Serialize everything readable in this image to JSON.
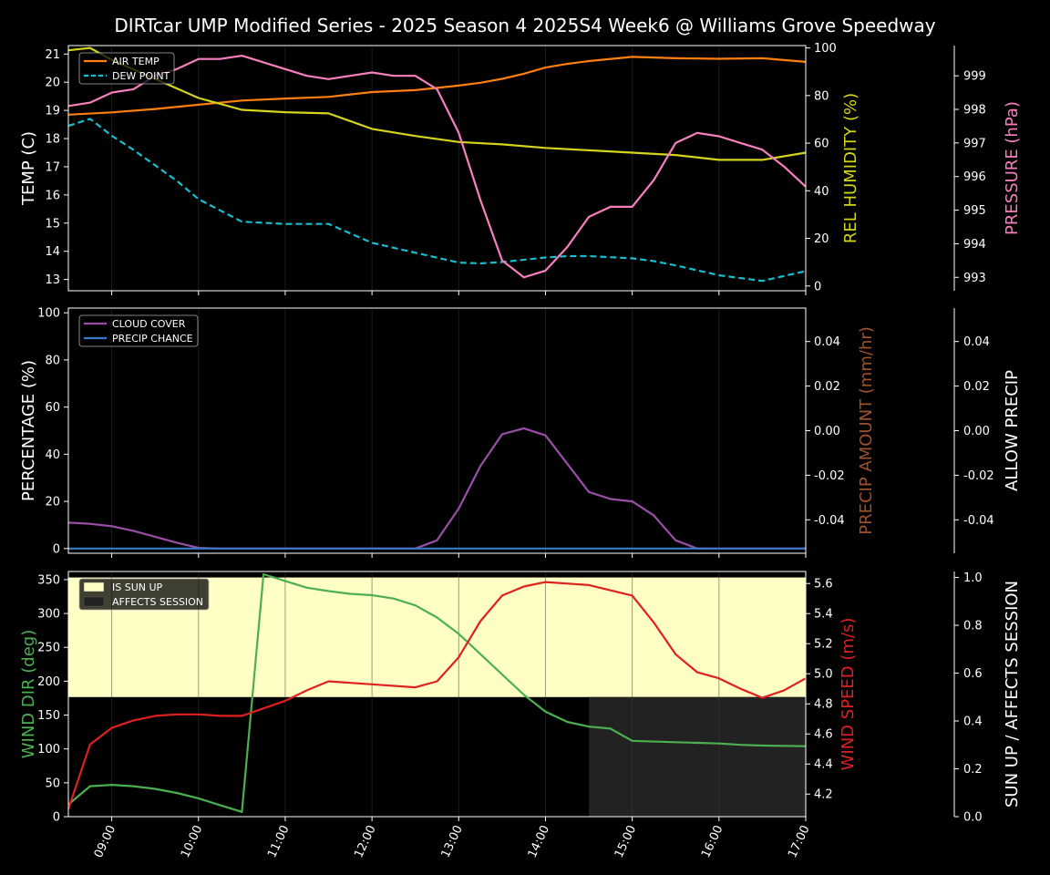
{
  "title": "DIRTcar UMP Modified Series - 2025 Season 4 2025S4 Week6 @ Williams Grove Speedway",
  "colors": {
    "background": "#000000",
    "air_temp": "#ff7f0e",
    "dew_point": "#17becf",
    "humidity": "#d4d41a",
    "pressure": "#f77fbe",
    "cloud_cover": "#9a4ea8",
    "precip_chance": "#3c78c8",
    "precip_amount": "#a0522d",
    "wind_dir": "#4caf50",
    "wind_speed": "#e02020",
    "sun_up": "#ffffc5",
    "affects_session": "#222222"
  },
  "chart_data": [
    {
      "type": "line",
      "panel": "conditions",
      "x_ticks": [
        "09:00",
        "10:00",
        "11:00",
        "12:00",
        "13:00",
        "14:00",
        "15:00",
        "16:00",
        "17:00"
      ],
      "xlim": [
        "08:30",
        "17:00"
      ],
      "ylabel": "TEMP (C)",
      "ylim": [
        12.6,
        21.3
      ],
      "yticks": [
        13,
        14,
        15,
        16,
        17,
        18,
        19,
        20,
        21
      ],
      "y2label": "REL HUMIDITY (%)",
      "y2lim": [
        -2,
        101
      ],
      "y2ticks": [
        0,
        20,
        40,
        60,
        80,
        100
      ],
      "y3label": "PRESSURE (hPa)",
      "y3lim": [
        992.6,
        999.9
      ],
      "y3ticks": [
        993,
        994,
        995,
        996,
        997,
        998,
        999
      ],
      "legend": [
        {
          "label": "AIR TEMP",
          "style": "solid"
        },
        {
          "label": "DEW POINT",
          "style": "dashed"
        }
      ],
      "legend_position": "upper-left",
      "series": [
        {
          "name": "AIR TEMP",
          "axis": "y",
          "x": [
            "08:30",
            "09:00",
            "09:30",
            "10:00",
            "10:30",
            "11:00",
            "11:30",
            "12:00",
            "12:30",
            "13:00",
            "13:15",
            "13:30",
            "13:45",
            "14:00",
            "14:15",
            "14:30",
            "15:00",
            "15:30",
            "16:00",
            "16:30",
            "17:00"
          ],
          "values": [
            18.85,
            18.93,
            19.05,
            19.2,
            19.35,
            19.42,
            19.48,
            19.65,
            19.72,
            19.88,
            19.98,
            20.12,
            20.3,
            20.52,
            20.65,
            20.75,
            20.9,
            20.85,
            20.83,
            20.85,
            20.72
          ]
        },
        {
          "name": "DEW POINT",
          "axis": "y",
          "x": [
            "08:30",
            "08:45",
            "09:00",
            "09:15",
            "09:30",
            "09:45",
            "10:00",
            "10:30",
            "11:00",
            "11:30",
            "12:00",
            "12:30",
            "13:00",
            "13:15",
            "13:30",
            "14:00",
            "14:15",
            "14:30",
            "15:00",
            "15:15",
            "15:30",
            "16:00",
            "16:30",
            "17:00"
          ],
          "values": [
            18.45,
            18.7,
            18.1,
            17.6,
            17.05,
            16.5,
            15.85,
            15.05,
            14.97,
            14.97,
            14.3,
            13.95,
            13.6,
            13.57,
            13.62,
            13.78,
            13.83,
            13.83,
            13.75,
            13.65,
            13.5,
            13.15,
            12.95,
            13.3
          ]
        },
        {
          "name": "REL HUMIDITY",
          "axis": "y2",
          "x": [
            "08:30",
            "08:45",
            "09:00",
            "09:15",
            "09:30",
            "09:45",
            "10:00",
            "10:30",
            "11:00",
            "11:30",
            "12:00",
            "12:30",
            "13:00",
            "13:30",
            "14:00",
            "14:30",
            "15:00",
            "15:30",
            "16:00",
            "16:30",
            "17:00"
          ],
          "values": [
            99,
            100,
            95,
            91,
            87,
            83,
            79,
            74,
            73,
            72.5,
            66,
            63,
            60.5,
            59.5,
            58,
            57,
            56,
            55,
            53,
            53,
            56
          ]
        },
        {
          "name": "PRESSURE",
          "axis": "y3",
          "x": [
            "08:30",
            "08:45",
            "09:00",
            "09:15",
            "09:30",
            "09:45",
            "10:00",
            "10:15",
            "10:30",
            "10:45",
            "11:00",
            "11:15",
            "11:30",
            "11:45",
            "12:00",
            "12:15",
            "12:30",
            "12:45",
            "13:00",
            "13:15",
            "13:30",
            "13:45",
            "14:00",
            "14:15",
            "14:30",
            "14:45",
            "15:00",
            "15:15",
            "15:30",
            "15:45",
            "16:00",
            "16:15",
            "16:30",
            "16:45",
            "17:00"
          ],
          "values": [
            998.1,
            998.2,
            998.5,
            998.6,
            999.0,
            999.2,
            999.5,
            999.5,
            999.6,
            999.4,
            999.2,
            999.0,
            998.9,
            999.0,
            999.1,
            999.0,
            999.0,
            998.6,
            997.3,
            995.3,
            993.5,
            993.0,
            993.2,
            993.9,
            994.8,
            995.1,
            995.1,
            995.9,
            997.0,
            997.3,
            997.2,
            997.0,
            996.8,
            996.3,
            995.7
          ]
        }
      ]
    },
    {
      "type": "line",
      "panel": "clouds",
      "ylabel": "PERCENTAGE (%)",
      "ylim": [
        -2,
        102
      ],
      "yticks": [
        0,
        20,
        40,
        60,
        80,
        100
      ],
      "y2label": "PRECIP AMOUNT (mm/hr)",
      "y2lim": [
        -0.055,
        0.055
      ],
      "y2ticks": [
        -0.04,
        -0.02,
        0.0,
        0.02,
        0.04
      ],
      "y3label": "ALLOW PRECIP",
      "y3lim": [
        -0.055,
        0.055
      ],
      "y3ticks": [
        -0.04,
        -0.02,
        0.0,
        0.02,
        0.04
      ],
      "legend": [
        {
          "label": "CLOUD COVER",
          "style": "solid"
        },
        {
          "label": "PRECIP CHANCE",
          "style": "solid"
        }
      ],
      "legend_position": "upper-left",
      "series": [
        {
          "name": "CLOUD COVER",
          "axis": "y",
          "x": [
            "08:30",
            "08:45",
            "09:00",
            "09:15",
            "09:30",
            "09:45",
            "10:00",
            "10:15",
            "12:30",
            "12:45",
            "13:00",
            "13:15",
            "13:30",
            "13:45",
            "14:00",
            "14:15",
            "14:30",
            "14:45",
            "15:00",
            "15:15",
            "15:30",
            "15:45",
            "16:00",
            "17:00"
          ],
          "values": [
            11,
            10.5,
            9.5,
            7.5,
            5,
            2.5,
            0.3,
            0,
            0,
            3.5,
            17,
            35,
            48.5,
            51,
            48,
            36,
            24,
            21,
            20,
            14,
            3.5,
            0,
            0,
            0
          ]
        },
        {
          "name": "PRECIP CHANCE",
          "axis": "y",
          "x": [
            "08:30",
            "17:00"
          ],
          "values": [
            0,
            0
          ]
        }
      ]
    },
    {
      "type": "line",
      "panel": "wind",
      "ylabel": "WIND DIR (deg)",
      "ylim": [
        0,
        362
      ],
      "yticks": [
        0,
        50,
        100,
        150,
        200,
        250,
        300,
        350
      ],
      "y2label": "WIND SPEED (m/s)",
      "y2lim": [
        4.05,
        5.68
      ],
      "y2ticks": [
        4.2,
        4.4,
        4.6,
        4.8,
        5.0,
        5.2,
        5.4,
        5.6
      ],
      "y3label": "SUN UP / AFFECTS SESSION",
      "y3lim": [
        0,
        1.025
      ],
      "y3ticks": [
        0.0,
        0.2,
        0.4,
        0.6,
        0.8,
        1.0
      ],
      "legend": [
        {
          "label": "IS SUN UP",
          "style": "patch"
        },
        {
          "label": "AFFECTS SESSION",
          "style": "patch"
        }
      ],
      "legend_position": "upper-left",
      "bands": [
        {
          "name": "IS SUN UP",
          "x": [
            "08:30",
            "17:00"
          ],
          "y3": [
            0.5,
            1.0
          ]
        },
        {
          "name": "AFFECTS SESSION",
          "x": [
            "14:30",
            "17:00"
          ],
          "y3": [
            0.0,
            0.5
          ]
        }
      ],
      "series": [
        {
          "name": "WIND DIR",
          "axis": "y",
          "x": [
            "08:30",
            "08:45",
            "09:00",
            "09:15",
            "09:30",
            "09:45",
            "10:00",
            "10:15",
            "10:30",
            "10:45",
            "11:00",
            "11:15",
            "11:30",
            "11:45",
            "12:00",
            "12:15",
            "12:30",
            "12:45",
            "13:00",
            "13:15",
            "13:30",
            "13:45",
            "14:00",
            "14:15",
            "14:30",
            "14:45",
            "15:00",
            "15:30",
            "16:00",
            "16:15",
            "16:30",
            "17:00"
          ],
          "values": [
            18,
            45,
            47,
            45,
            41,
            35,
            27,
            17,
            7,
            358,
            348,
            338,
            333,
            329,
            327,
            322,
            312,
            294,
            270,
            240,
            210,
            180,
            155,
            140,
            133,
            130,
            112,
            110,
            108,
            106,
            105,
            104
          ]
        },
        {
          "name": "WIND SPEED",
          "axis": "y2",
          "x": [
            "08:30",
            "08:45",
            "09:00",
            "09:15",
            "09:30",
            "09:45",
            "10:00",
            "10:15",
            "10:30",
            "10:45",
            "11:00",
            "11:15",
            "11:30",
            "12:00",
            "12:30",
            "12:45",
            "13:00",
            "13:15",
            "13:30",
            "13:45",
            "14:00",
            "14:30",
            "15:00",
            "15:15",
            "15:30",
            "15:45",
            "16:00",
            "16:15",
            "16:30",
            "16:45",
            "17:00"
          ],
          "values": [
            4.1,
            4.53,
            4.64,
            4.69,
            4.72,
            4.73,
            4.73,
            4.72,
            4.72,
            4.77,
            4.82,
            4.89,
            4.95,
            4.93,
            4.91,
            4.95,
            5.11,
            5.35,
            5.52,
            5.58,
            5.61,
            5.59,
            5.52,
            5.34,
            5.13,
            5.01,
            4.97,
            4.9,
            4.84,
            4.89,
            4.97
          ]
        }
      ]
    }
  ]
}
